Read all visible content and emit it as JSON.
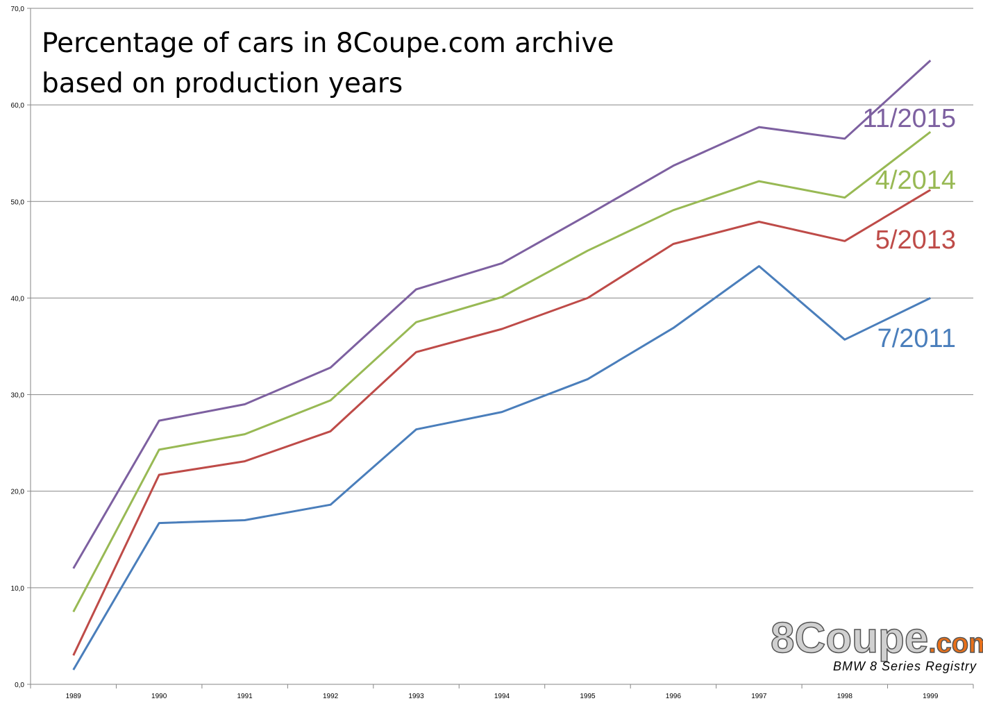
{
  "chart_data": {
    "type": "line",
    "title_lines": [
      "Percentage of cars in 8Coupe.com archive",
      "based on production years"
    ],
    "categories": [
      "1989",
      "1990",
      "1991",
      "1992",
      "1993",
      "1994",
      "1995",
      "1996",
      "1997",
      "1998",
      "1999"
    ],
    "y_ticks": [
      "0,0",
      "10,0",
      "20,0",
      "30,0",
      "40,0",
      "50,0",
      "60,0",
      "70,0"
    ],
    "ylim": [
      0,
      70
    ],
    "grid": true,
    "legend": "inline labels at right end of lines",
    "series": [
      {
        "name": "7/2011",
        "color": "#4a7ebb",
        "values": [
          1.5,
          16.7,
          17.0,
          18.6,
          26.4,
          28.2,
          31.6,
          36.9,
          43.3,
          35.7,
          40.0
        ]
      },
      {
        "name": "5/2013",
        "color": "#be4b48",
        "values": [
          3.0,
          21.7,
          23.1,
          26.2,
          34.4,
          36.8,
          40.0,
          45.6,
          47.9,
          45.9,
          51.2
        ]
      },
      {
        "name": "4/2014",
        "color": "#98b954",
        "values": [
          7.5,
          24.3,
          25.9,
          29.4,
          37.5,
          40.1,
          44.9,
          49.1,
          52.1,
          50.4,
          57.2
        ]
      },
      {
        "name": "11/2015",
        "color": "#7d60a0",
        "values": [
          12.0,
          27.3,
          29.0,
          32.8,
          40.9,
          43.6,
          48.6,
          53.7,
          57.7,
          56.5,
          64.6
        ]
      }
    ]
  },
  "logo": {
    "main_text": "8Coupe",
    "suffix_text": ".com",
    "tagline": "BMW 8 Series Registry",
    "main_color": "#d0d0d0",
    "suffix_color": "#e8701a"
  }
}
